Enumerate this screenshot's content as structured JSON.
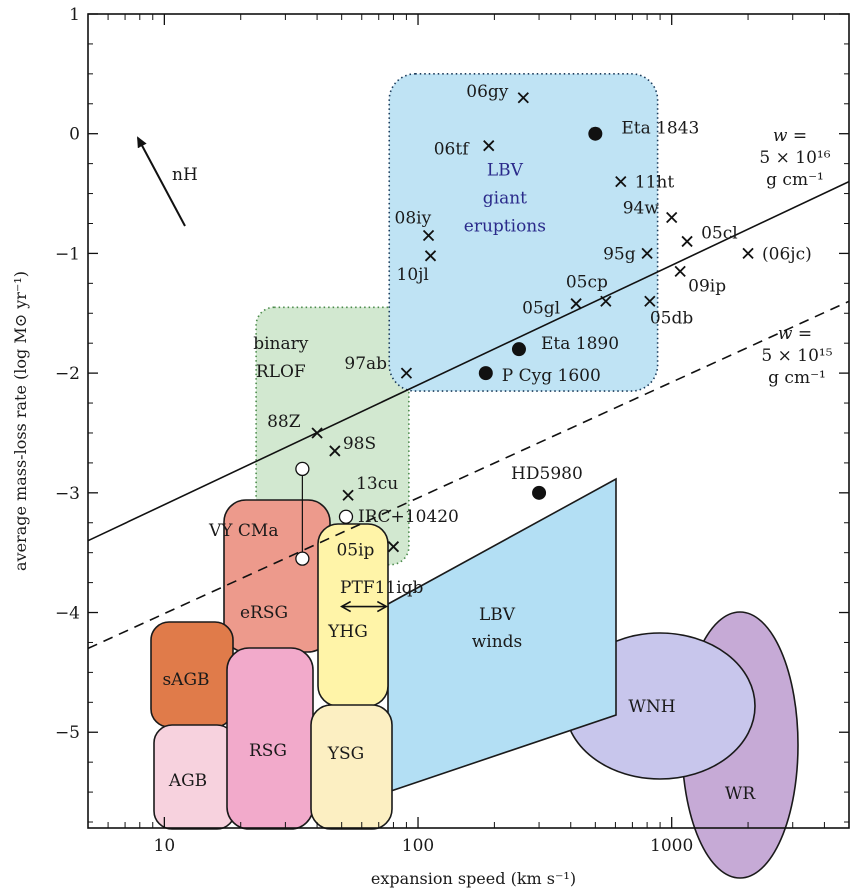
{
  "chart_data": {
    "type": "scatter",
    "xlabel": "expansion speed (km s⁻¹)",
    "ylabel": "average mass-loss rate (log M⊙ yr⁻¹)",
    "x_scale": "log",
    "xlim": [
      5,
      5000
    ],
    "ylim": [
      -5.8,
      1.0
    ],
    "x_ticks": [
      {
        "value": 10,
        "label": "10"
      },
      {
        "value": 100,
        "label": "100"
      },
      {
        "value": 1000,
        "label": "1000"
      }
    ],
    "y_ticks": [
      {
        "value": 1,
        "label": "1"
      },
      {
        "value": 0,
        "label": "0"
      },
      {
        "value": -1,
        "label": "−1"
      },
      {
        "value": -2,
        "label": "−2"
      },
      {
        "value": -3,
        "label": "−3"
      },
      {
        "value": -4,
        "label": "−4"
      },
      {
        "value": -5,
        "label": "−5"
      }
    ],
    "grid": false,
    "cross_points": [
      {
        "name": "06gy",
        "x": 260,
        "y": 0.3
      },
      {
        "name": "06tf",
        "x": 190,
        "y": -0.1
      },
      {
        "name": "11ht",
        "x": 630,
        "y": -0.4
      },
      {
        "name": "94w",
        "x": 1000,
        "y": -0.7
      },
      {
        "name": "05cl",
        "x": 1150,
        "y": -0.9
      },
      {
        "name": "(06jc)",
        "x": 2000,
        "y": -1.0
      },
      {
        "name": "95g",
        "x": 800,
        "y": -1.0
      },
      {
        "name": "09ip",
        "x": 1080,
        "y": -1.15
      },
      {
        "name": "08iy",
        "x": 110,
        "y": -0.85
      },
      {
        "name": "10jl",
        "x": 112,
        "y": -1.02
      },
      {
        "name": "05cp",
        "x": 550,
        "y": -1.4
      },
      {
        "name": "05gl",
        "x": 420,
        "y": -1.42
      },
      {
        "name": "05db",
        "x": 820,
        "y": -1.4
      },
      {
        "name": "97ab",
        "x": 90,
        "y": -2.0
      },
      {
        "name": "88Z",
        "x": 40,
        "y": -2.5
      },
      {
        "name": "98S",
        "x": 47,
        "y": -2.65
      },
      {
        "name": "13cu",
        "x": 53,
        "y": -3.02
      },
      {
        "name": "05ip",
        "x": 80,
        "y": -3.45
      }
    ],
    "dot_points": [
      {
        "name": "Eta 1843",
        "x": 500,
        "y": 0.0
      },
      {
        "name": "Eta 1890",
        "x": 250,
        "y": -1.8
      },
      {
        "name": "P Cyg 1600",
        "x": 185,
        "y": -2.0
      },
      {
        "name": "HD5980",
        "x": 300,
        "y": -3.0
      }
    ],
    "open_points": [
      {
        "name": "VY CMa",
        "x": 35,
        "y": -2.8
      },
      {
        "name": "",
        "x": 35,
        "y": -3.55
      },
      {
        "name": "IRC+10420",
        "x": 52,
        "y": -3.2
      }
    ],
    "range_point": {
      "name": "PTF11iqb",
      "x_min": 50,
      "x_max": 75,
      "y": -3.95
    },
    "lines": [
      {
        "name": "w = 5 × 10¹⁶ g cm⁻¹",
        "label_lines": [
          "w =",
          "5 × 10¹⁶",
          "g cm⁻¹"
        ],
        "style": "solid",
        "points": [
          [
            5,
            -3.4
          ],
          [
            5000,
            -0.4
          ]
        ]
      },
      {
        "name": "w = 5 × 10¹⁵ g cm⁻¹",
        "label_lines": [
          "w =",
          "5 × 10¹⁵",
          "g cm⁻¹"
        ],
        "style": "dashed",
        "points": [
          [
            5,
            -4.3
          ],
          [
            5000,
            -1.4
          ]
        ]
      }
    ],
    "arrow_label": "nH",
    "regions": [
      {
        "key": "binary",
        "label": [
          "binary",
          "RLOF"
        ],
        "fill": "#d2e8d0",
        "stroke": "#4a8a4a",
        "dotted": true
      },
      {
        "key": "lbv_giant",
        "label": [
          "LBV",
          "giant",
          "eruptions"
        ],
        "fill": "#bfe3f4",
        "stroke": "#1a3a5a",
        "dotted": true
      },
      {
        "key": "sAGB",
        "label": [
          "sAGB"
        ],
        "fill": "#e07b4a",
        "stroke": "#1a1a1a"
      },
      {
        "key": "AGB",
        "label": [
          "AGB"
        ],
        "fill": "#f7d2de",
        "stroke": "#1a1a1a"
      },
      {
        "key": "eRSG",
        "label": [
          "eRSG"
        ],
        "fill": "#ed9a8c",
        "stroke": "#1a1a1a"
      },
      {
        "key": "RSG",
        "label": [
          "RSG"
        ],
        "fill": "#f2aacb",
        "stroke": "#1a1a1a"
      },
      {
        "key": "YHG",
        "label": [
          "YHG"
        ],
        "fill": "#fff4a8",
        "stroke": "#1a1a1a"
      },
      {
        "key": "YSG",
        "label": [
          "YSG"
        ],
        "fill": "#fcefc2",
        "stroke": "#1a1a1a"
      },
      {
        "key": "lbv_winds",
        "label": [
          "LBV",
          "winds"
        ],
        "fill": "#b3dff4",
        "stroke": "#1a1a1a"
      },
      {
        "key": "WR",
        "label": [
          "WR"
        ],
        "fill": "#c6aad6",
        "stroke": "#1a1a1a"
      },
      {
        "key": "WNH",
        "label": [
          "WNH"
        ],
        "fill": "#c8c6ec",
        "stroke": "#1a1a1a"
      }
    ]
  }
}
